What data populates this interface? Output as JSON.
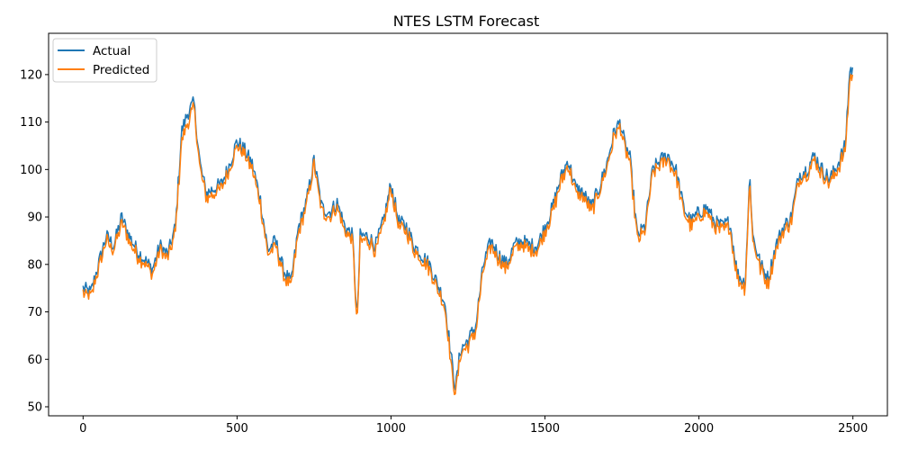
{
  "chart_data": {
    "type": "line",
    "title": "NTES LSTM Forecast",
    "xlabel": "",
    "ylabel": "",
    "xlim": [
      -112,
      2612
    ],
    "ylim": [
      48.1,
      128.7
    ],
    "x_ticks": [
      0,
      500,
      1000,
      1500,
      2000,
      2500
    ],
    "y_ticks": [
      50,
      60,
      70,
      80,
      90,
      100,
      110,
      120
    ],
    "grid": false,
    "legend_position": "upper-left",
    "colors": {
      "actual": "#1f77b4",
      "predicted": "#ff7f0e"
    },
    "x": [
      0,
      25,
      50,
      75,
      100,
      125,
      150,
      175,
      200,
      225,
      250,
      275,
      300,
      320,
      340,
      360,
      380,
      400,
      425,
      450,
      475,
      500,
      525,
      550,
      575,
      600,
      625,
      650,
      675,
      700,
      725,
      750,
      775,
      800,
      825,
      850,
      875,
      890,
      900,
      925,
      950,
      975,
      1000,
      1025,
      1050,
      1075,
      1100,
      1125,
      1150,
      1175,
      1200,
      1210,
      1225,
      1250,
      1275,
      1300,
      1325,
      1350,
      1375,
      1400,
      1425,
      1450,
      1475,
      1500,
      1525,
      1550,
      1575,
      1600,
      1625,
      1650,
      1675,
      1700,
      1725,
      1745,
      1760,
      1775,
      1800,
      1825,
      1850,
      1875,
      1900,
      1925,
      1950,
      1975,
      2000,
      2025,
      2050,
      2075,
      2100,
      2125,
      2150,
      2165,
      2175,
      2200,
      2225,
      2250,
      2275,
      2300,
      2325,
      2350,
      2375,
      2400,
      2425,
      2450,
      2475,
      2490,
      2500
    ],
    "series": [
      {
        "name": "Actual",
        "values": [
          75,
          74,
          80,
          86,
          84,
          90,
          86,
          83,
          81,
          79,
          84,
          82,
          88,
          108,
          112,
          114,
          101,
          95,
          96,
          97,
          101,
          106,
          104,
          101,
          94,
          83,
          85,
          79,
          76,
          88,
          93,
          102,
          92,
          91,
          93,
          88,
          86,
          68,
          86,
          86,
          84,
          89,
          97,
          89,
          88,
          84,
          82,
          80,
          76,
          72,
          58,
          54,
          62,
          64,
          67,
          80,
          85,
          82,
          80,
          84,
          85,
          84,
          84,
          88,
          92,
          98,
          102,
          96,
          95,
          92,
          96,
          101,
          108,
          110,
          105,
          103,
          86,
          88,
          100,
          102,
          103,
          100,
          92,
          89,
          91,
          92,
          89,
          88,
          89,
          78,
          76,
          99,
          86,
          80,
          77,
          84,
          88,
          90,
          99,
          100,
          103,
          100,
          98,
          101,
          105,
          121,
          121
        ]
      },
      {
        "name": "Predicted",
        "values": [
          74,
          73,
          79,
          85,
          83,
          89,
          85,
          82,
          80,
          78,
          83,
          81,
          87,
          106,
          110,
          113,
          100,
          94,
          95,
          96,
          100,
          105,
          103,
          100,
          93,
          82,
          84,
          78,
          75,
          87,
          92,
          101,
          91,
          90,
          92,
          87,
          85,
          67,
          85,
          85,
          83,
          88,
          96,
          88,
          87,
          83,
          81,
          79,
          75,
          71,
          56,
          53,
          61,
          63,
          66,
          79,
          84,
          81,
          79,
          83,
          84,
          83,
          83,
          87,
          91,
          97,
          101,
          95,
          94,
          91,
          95,
          100,
          107,
          109,
          104,
          102,
          85,
          87,
          99,
          101,
          102,
          99,
          91,
          88,
          90,
          91,
          88,
          87,
          88,
          77,
          75,
          98,
          85,
          79,
          76,
          83,
          87,
          89,
          98,
          99,
          102,
          99,
          97,
          100,
          104,
          119,
          120
        ]
      }
    ]
  }
}
